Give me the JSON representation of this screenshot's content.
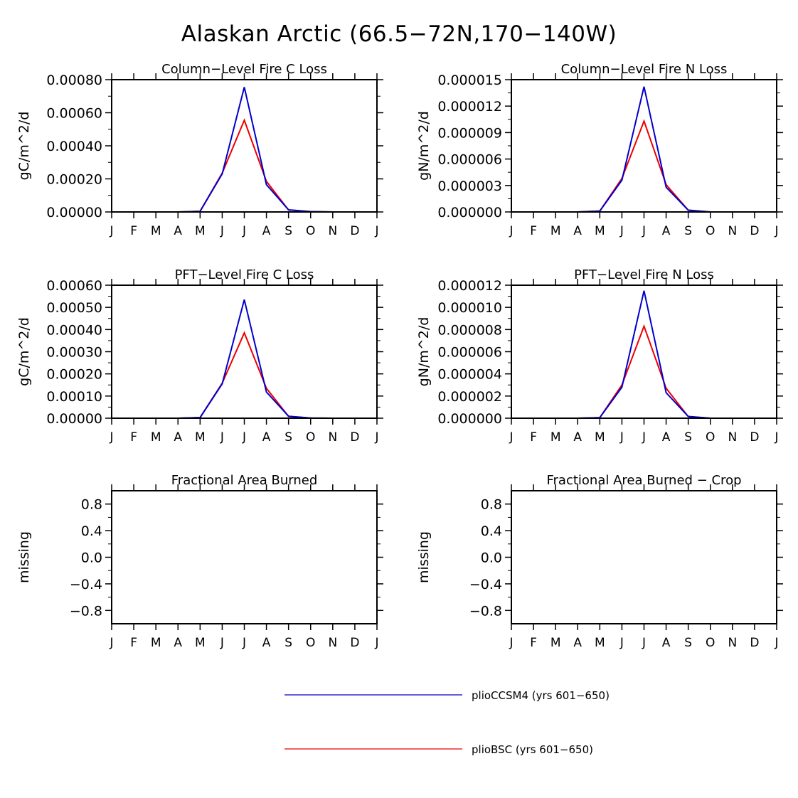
{
  "title": "Alaskan Arctic (66.5−72N,170−140W)",
  "months": [
    "J",
    "F",
    "M",
    "A",
    "M",
    "J",
    "J",
    "A",
    "S",
    "O",
    "N",
    "D",
    "J"
  ],
  "legend": {
    "items": [
      {
        "label": "plioCCSM4 (yrs 601−650)",
        "color": "#0000cc"
      },
      {
        "label": "plioBSC (yrs 601−650)",
        "color": "#ee0000"
      }
    ]
  },
  "chart_data": [
    {
      "type": "line",
      "title": "Column−Level Fire C Loss",
      "ylabel": "gC/m^2/d",
      "ylim": [
        0,
        0.0008
      ],
      "yticks": [
        "0.00000",
        "0.00020",
        "0.00040",
        "0.00060",
        "0.00080"
      ],
      "categories": [
        "J",
        "F",
        "M",
        "A",
        "M",
        "J",
        "J",
        "A",
        "S",
        "O",
        "N",
        "D",
        "J"
      ],
      "series": [
        {
          "name": "plioBSC (yrs 601−650)",
          "color": "#ee0000",
          "values": [
            0,
            0,
            0,
            0,
            4e-06,
            0.000235,
            0.000555,
            0.000185,
            1.2e-05,
            2e-06,
            0,
            0,
            0
          ]
        },
        {
          "name": "plioCCSM4 (yrs 601−650)",
          "color": "#0000cc",
          "values": [
            0,
            0,
            0,
            0,
            4e-06,
            0.00023,
            0.000755,
            0.000165,
            1.3e-05,
            2e-06,
            0,
            0,
            0
          ]
        }
      ]
    },
    {
      "type": "line",
      "title": "Column−Level Fire N Loss",
      "ylabel": "gN/m^2/d",
      "ylim": [
        0,
        1.5e-05
      ],
      "yticks": [
        "0.000000",
        "0.000003",
        "0.000006",
        "0.000009",
        "0.000012",
        "0.000015"
      ],
      "categories": [
        "J",
        "F",
        "M",
        "A",
        "M",
        "J",
        "J",
        "A",
        "S",
        "O",
        "N",
        "D",
        "J"
      ],
      "series": [
        {
          "name": "plioBSC (yrs 601−650)",
          "color": "#ee0000",
          "values": [
            0,
            0,
            0,
            0,
            1e-07,
            3.8e-06,
            1.03e-05,
            3.1e-06,
            2e-07,
            0,
            0,
            0,
            0
          ]
        },
        {
          "name": "plioCCSM4 (yrs 601−650)",
          "color": "#0000cc",
          "values": [
            0,
            0,
            0,
            0,
            1e-07,
            3.6e-06,
            1.42e-05,
            2.8e-06,
            2e-07,
            0,
            0,
            0,
            0
          ]
        }
      ]
    },
    {
      "type": "line",
      "title": "PFT−Level Fire C Loss",
      "ylabel": "gC/m^2/d",
      "ylim": [
        0,
        0.0006
      ],
      "yticks": [
        "0.00000",
        "0.00010",
        "0.00020",
        "0.00030",
        "0.00040",
        "0.00050",
        "0.00060"
      ],
      "categories": [
        "J",
        "F",
        "M",
        "A",
        "M",
        "J",
        "J",
        "A",
        "S",
        "O",
        "N",
        "D",
        "J"
      ],
      "series": [
        {
          "name": "plioBSC (yrs 601−650)",
          "color": "#ee0000",
          "values": [
            0,
            0,
            0,
            0,
            3e-06,
            0.000158,
            0.000385,
            0.000135,
            8e-06,
            1e-06,
            0,
            0,
            0
          ]
        },
        {
          "name": "plioCCSM4 (yrs 601−650)",
          "color": "#0000cc",
          "values": [
            0,
            0,
            0,
            0,
            3e-06,
            0.000155,
            0.000535,
            0.000118,
            9e-06,
            1e-06,
            0,
            0,
            0
          ]
        }
      ]
    },
    {
      "type": "line",
      "title": "PFT−Level Fire N Loss",
      "ylabel": "gN/m^2/d",
      "ylim": [
        0,
        1.2e-05
      ],
      "yticks": [
        "0.000000",
        "0.000002",
        "0.000004",
        "0.000006",
        "0.000008",
        "0.000010",
        "0.000012"
      ],
      "categories": [
        "J",
        "F",
        "M",
        "A",
        "M",
        "J",
        "J",
        "A",
        "S",
        "O",
        "N",
        "D",
        "J"
      ],
      "series": [
        {
          "name": "plioBSC (yrs 601−650)",
          "color": "#ee0000",
          "values": [
            0,
            0,
            0,
            0,
            5e-08,
            3e-06,
            8.3e-06,
            2.7e-06,
            1.5e-07,
            0,
            0,
            0,
            0
          ]
        },
        {
          "name": "plioCCSM4 (yrs 601−650)",
          "color": "#0000cc",
          "values": [
            0,
            0,
            0,
            0,
            5e-08,
            2.8e-06,
            1.15e-05,
            2.3e-06,
            1.6e-07,
            0,
            0,
            0,
            0
          ]
        }
      ]
    },
    {
      "type": "line",
      "title": "Fractional Area Burned",
      "ylabel": "missing",
      "ylim": [
        -1,
        1
      ],
      "yticks": [
        "−0.8",
        "−0.4",
        "0.0",
        "0.4",
        "0.8"
      ],
      "ytick_values": [
        -0.8,
        -0.4,
        0,
        0.4,
        0.8
      ],
      "categories": [
        "J",
        "F",
        "M",
        "A",
        "M",
        "J",
        "J",
        "A",
        "S",
        "O",
        "N",
        "D",
        "J"
      ],
      "series": []
    },
    {
      "type": "line",
      "title": "Fractional Area Burned − Crop",
      "ylabel": "missing",
      "ylim": [
        -1,
        1
      ],
      "yticks": [
        "−0.8",
        "−0.4",
        "0.0",
        "0.4",
        "0.8"
      ],
      "ytick_values": [
        -0.8,
        -0.4,
        0,
        0.4,
        0.8
      ],
      "categories": [
        "J",
        "F",
        "M",
        "A",
        "M",
        "J",
        "J",
        "A",
        "S",
        "O",
        "N",
        "D",
        "J"
      ],
      "series": []
    }
  ]
}
